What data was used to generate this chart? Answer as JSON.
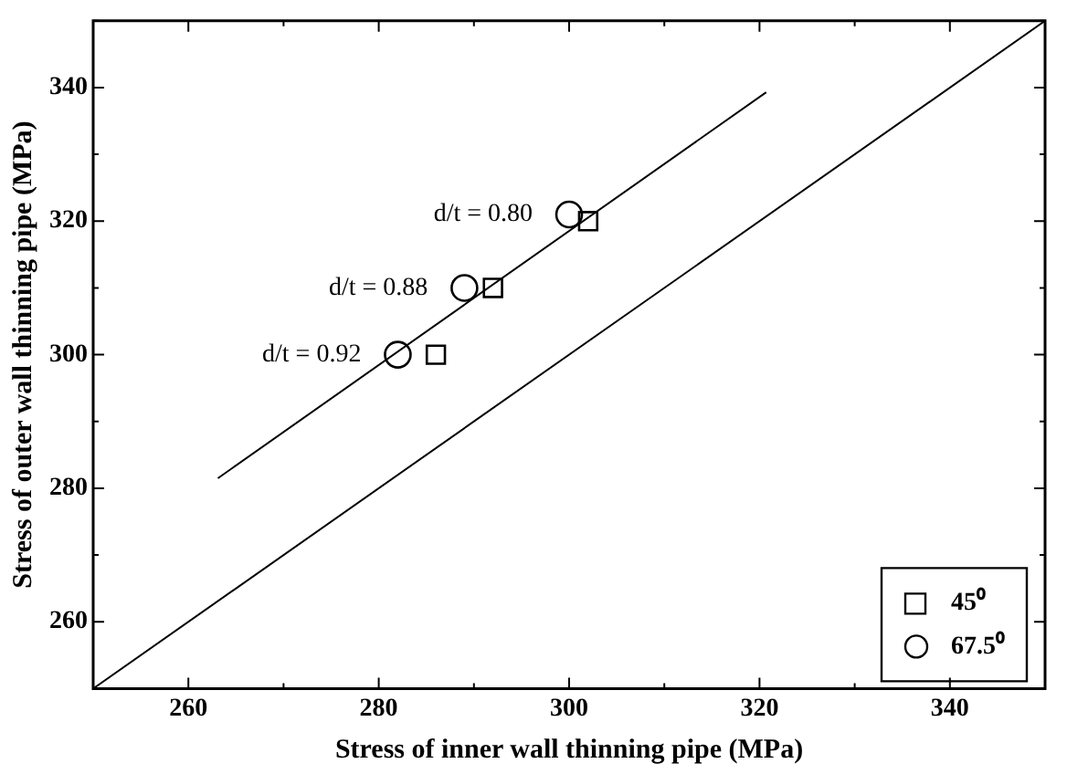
{
  "chart_data": {
    "type": "scatter",
    "xlabel": "Stress of inner wall thinning pipe (MPa)",
    "ylabel": "Stress of outer wall thinning pipe (MPa)",
    "xlim": [
      250,
      350
    ],
    "ylim": [
      250,
      350
    ],
    "xticks": [
      {
        "value": 250,
        "label": null
      },
      260,
      {
        "value": 270,
        "label": null
      },
      280,
      {
        "value": 290,
        "label": null
      },
      300,
      {
        "value": 310,
        "label": null
      },
      320,
      {
        "value": 330,
        "label": null
      },
      340,
      {
        "value": 350,
        "label": null
      }
    ],
    "yticks": [
      {
        "value": 250,
        "label": null
      },
      260,
      {
        "value": 270,
        "label": null
      },
      280,
      {
        "value": 290,
        "label": null
      },
      300,
      {
        "value": 310,
        "label": null
      },
      320,
      {
        "value": 330,
        "label": null
      },
      340,
      {
        "value": 350,
        "label": null
      }
    ],
    "grid": false,
    "legend": "bottom right",
    "series": [
      {
        "name": "45⁰",
        "color": "#000000",
        "marker": "square",
        "x": [
          302,
          292,
          286
        ],
        "values": [
          320,
          310,
          300
        ]
      },
      {
        "name": "67.5⁰",
        "color": "#000000",
        "marker": "circle",
        "x": [
          300,
          289,
          282
        ],
        "values": [
          321,
          310,
          300
        ]
      },
      {
        "type": "line",
        "color": "#000000",
        "marker": "none",
        "x": [
          263.1,
          320.7
        ],
        "values": [
          281.5,
          339.3
        ]
      },
      {
        "type": "line",
        "color": "#000000",
        "marker": "none",
        "x": [
          250,
          350
        ],
        "values": [
          250,
          350
        ]
      }
    ],
    "annotations": [
      {
        "text": "d/t = 0.80",
        "x": 300,
        "y": 321
      },
      {
        "text": "d/t = 0.88",
        "x": 289,
        "y": 310
      },
      {
        "text": "d/t = 0.92",
        "x": 282,
        "y": 300
      }
    ]
  }
}
